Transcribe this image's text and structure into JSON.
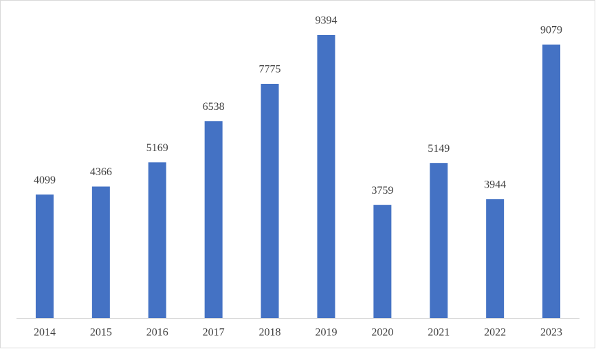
{
  "chart_data": {
    "type": "bar",
    "categories": [
      "2014",
      "2015",
      "2016",
      "2017",
      "2018",
      "2019",
      "2020",
      "2021",
      "2022",
      "2023"
    ],
    "values": [
      4099,
      4366,
      5169,
      6538,
      7775,
      9394,
      3759,
      5149,
      3944,
      9079
    ],
    "color": "#4472c4"
  }
}
